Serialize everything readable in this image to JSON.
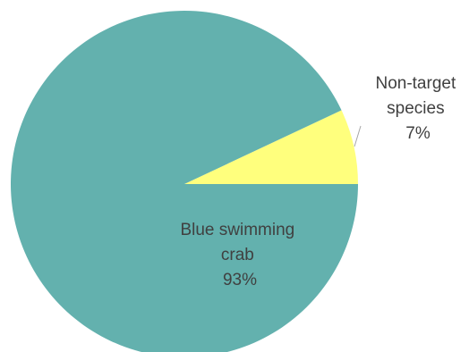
{
  "chart_data": {
    "type": "pie",
    "title": "",
    "legend": "none",
    "slices": [
      {
        "label": "Blue swimming crab",
        "label_lines": [
          "Blue swimming",
          "crab"
        ],
        "percent_text": "93%",
        "value": 93,
        "color": "#63b1ae"
      },
      {
        "label": "Non-target species",
        "label_lines": [
          "Non-target",
          "species"
        ],
        "percent_text": "7%",
        "value": 7,
        "color": "#ffff7d"
      }
    ]
  }
}
